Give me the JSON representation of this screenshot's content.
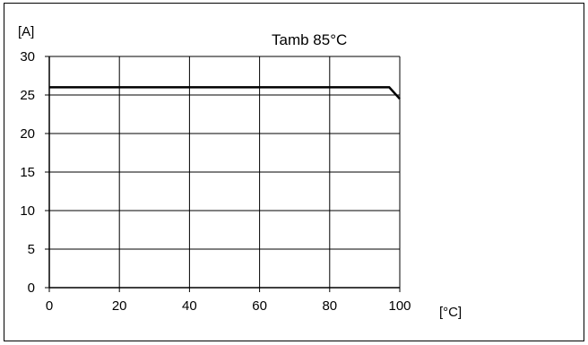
{
  "chart_data": {
    "type": "line",
    "title": "Tamb 85°C",
    "ylabel": "[A]",
    "xlabel": "[°C]",
    "xlim": [
      0,
      100
    ],
    "ylim": [
      0,
      30
    ],
    "x_ticks": [
      0,
      20,
      40,
      60,
      80,
      100
    ],
    "y_ticks": [
      0,
      5,
      10,
      15,
      20,
      25,
      30
    ],
    "grid": true,
    "series": [
      {
        "x": [
          0,
          97,
          100
        ],
        "y": [
          26,
          26,
          24.5
        ],
        "color": "#000000"
      }
    ]
  }
}
